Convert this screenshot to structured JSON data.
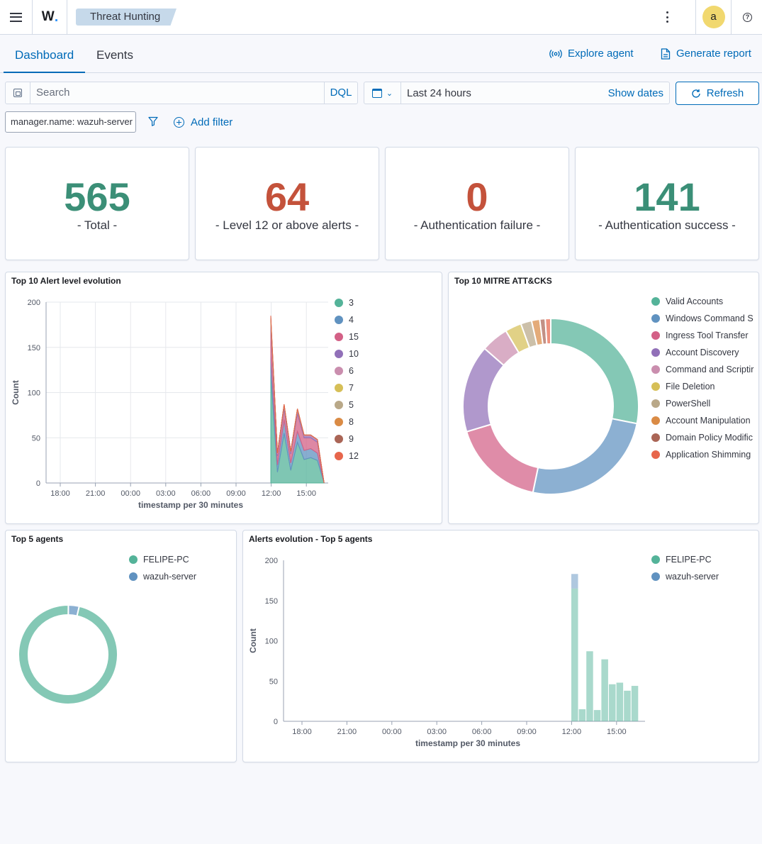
{
  "header": {
    "logo": "W",
    "breadcrumb": "Threat Hunting",
    "avatar": "a",
    "help": "?"
  },
  "tabs": [
    {
      "label": "Dashboard",
      "active": true
    },
    {
      "label": "Events",
      "active": false
    }
  ],
  "actions": {
    "explore_agent": "Explore agent",
    "generate_report": "Generate report"
  },
  "search": {
    "placeholder": "Search",
    "dql": "DQL"
  },
  "date": {
    "range": "Last 24 hours",
    "show_dates": "Show dates",
    "refresh": "Refresh"
  },
  "filters": {
    "pill": "manager.name: wazuh-server",
    "add_filter": "Add filter"
  },
  "stats": [
    {
      "value": "565",
      "label": "- Total -",
      "color": "#3b8f77"
    },
    {
      "value": "64",
      "label": "- Level 12 or above alerts -",
      "color": "#c4523b"
    },
    {
      "value": "0",
      "label": "- Authentication failure -",
      "color": "#c4523b"
    },
    {
      "value": "141",
      "label": "- Authentication success -",
      "color": "#3b8f77"
    }
  ],
  "colors": [
    "#54b399",
    "#6092c0",
    "#d36086",
    "#9170b8",
    "#ca8eae",
    "#d6bf57",
    "#b9a888",
    "#da8b45",
    "#aa6556",
    "#e7664c"
  ],
  "panels": {
    "alert_level": {
      "title": "Top 10 Alert level evolution"
    },
    "mitre": {
      "title": "Top 10 MITRE ATT&CKS"
    },
    "top_agents": {
      "title": "Top 5 agents"
    },
    "agents_evolution": {
      "title": "Alerts evolution - Top 5 agents"
    }
  },
  "chart_data": [
    {
      "type": "area",
      "title": "Top 10 Alert level evolution",
      "xlabel": "timestamp per 30 minutes",
      "ylabel": "Count",
      "ylim": [
        0,
        200
      ],
      "yticks": [
        0,
        50,
        100,
        150,
        200
      ],
      "xticks": [
        "18:00",
        "21:00",
        "00:00",
        "03:00",
        "06:00",
        "09:00",
        "12:00",
        "15:00"
      ],
      "stacked": true,
      "legend_position": "right",
      "grid": true,
      "x": [
        "12:00",
        "12:30",
        "13:00",
        "13:30",
        "14:00",
        "14:30",
        "15:00",
        "15:30",
        "16:00"
      ],
      "series": [
        {
          "name": "3",
          "values": [
            120,
            12,
            55,
            14,
            45,
            26,
            28,
            25,
            0
          ]
        },
        {
          "name": "4",
          "values": [
            20,
            8,
            15,
            8,
            12,
            10,
            10,
            8,
            0
          ]
        },
        {
          "name": "15",
          "values": [
            30,
            10,
            12,
            10,
            20,
            14,
            12,
            12,
            0
          ]
        },
        {
          "name": "10",
          "values": [
            5,
            2,
            3,
            2,
            3,
            2,
            2,
            2,
            0
          ]
        },
        {
          "name": "6",
          "values": [
            3,
            1,
            1,
            1,
            1,
            1,
            1,
            1,
            0
          ]
        },
        {
          "name": "7",
          "values": [
            2,
            0,
            1,
            0,
            1,
            0,
            0,
            0,
            0
          ]
        },
        {
          "name": "5",
          "values": [
            2,
            0,
            0,
            0,
            0,
            0,
            0,
            0,
            0
          ]
        },
        {
          "name": "8",
          "values": [
            1,
            0,
            0,
            0,
            0,
            0,
            0,
            0,
            0
          ]
        },
        {
          "name": "9",
          "values": [
            1,
            0,
            0,
            0,
            0,
            0,
            0,
            0,
            0
          ]
        },
        {
          "name": "12",
          "values": [
            1,
            0,
            0,
            0,
            0,
            0,
            0,
            0,
            0
          ]
        }
      ]
    },
    {
      "type": "pie",
      "donut": true,
      "title": "Top 10 MITRE ATT&CKS",
      "legend_position": "right",
      "labels": [
        "Valid Accounts",
        "Windows Command S",
        "Ingress Tool Transfer",
        "Account Discovery",
        "Command and Scriptir",
        "File Deletion",
        "PowerShell",
        "Account Manipulation",
        "Domain Policy Modific",
        "Application Shimming"
      ],
      "values": [
        28,
        25,
        17,
        16,
        5,
        3,
        2,
        1.5,
        1,
        1
      ]
    },
    {
      "type": "pie",
      "donut": true,
      "title": "Top 5 agents",
      "legend_position": "top",
      "labels": [
        "FELIPE-PC",
        "wazuh-server"
      ],
      "values": [
        96.5,
        3.5
      ]
    },
    {
      "type": "bar",
      "stacked": true,
      "title": "Alerts evolution - Top 5 agents",
      "xlabel": "timestamp per 30 minutes",
      "ylabel": "Count",
      "ylim": [
        0,
        200
      ],
      "yticks": [
        0,
        50,
        100,
        150,
        200
      ],
      "xticks": [
        "18:00",
        "21:00",
        "00:00",
        "03:00",
        "06:00",
        "09:00",
        "12:00",
        "15:00"
      ],
      "legend_position": "right",
      "x": [
        "12:00",
        "12:30",
        "13:00",
        "13:30",
        "14:00",
        "14:30",
        "15:00",
        "15:30",
        "16:00"
      ],
      "series": [
        {
          "name": "FELIPE-PC",
          "values": [
            165,
            15,
            87,
            14,
            77,
            46,
            48,
            38,
            44
          ]
        },
        {
          "name": "wazuh-server",
          "values": [
            18,
            0,
            0,
            0,
            0,
            0,
            0,
            0,
            0
          ]
        }
      ]
    }
  ]
}
